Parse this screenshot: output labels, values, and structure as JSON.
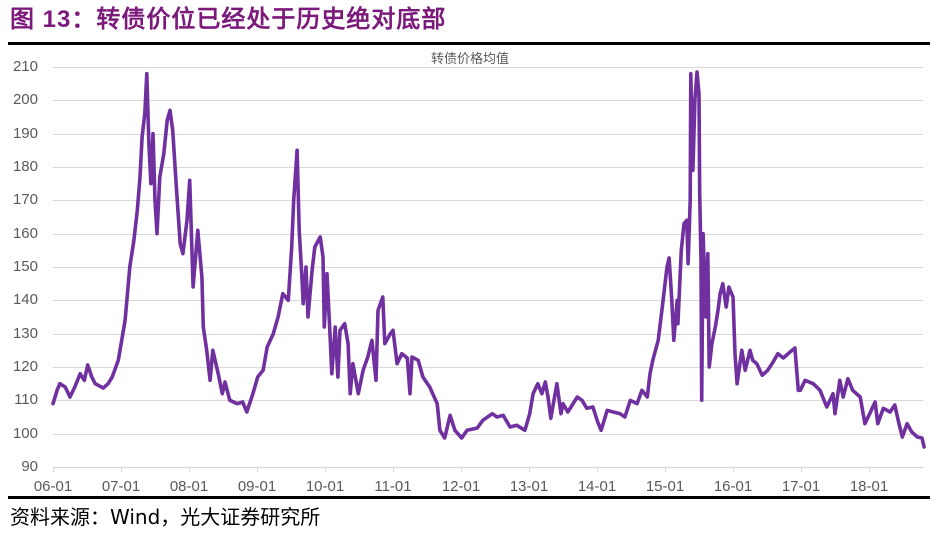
{
  "figure": {
    "title": "图 13：转债价位已经处于历史绝对底部",
    "source": "资料来源：Wind，光大证券研究所",
    "title_color": "#7b1a7b"
  },
  "chart_data": {
    "type": "line",
    "title": "",
    "xlabel": "",
    "ylabel": "",
    "legend": [
      "转债价格均值"
    ],
    "legend_position": "top-center",
    "grid": "horizontal",
    "ylim": [
      90,
      210
    ],
    "xlim": [
      2006.0,
      2018.85
    ],
    "yticks": [
      "210",
      "200",
      "190",
      "180",
      "170",
      "160",
      "150",
      "140",
      "130",
      "120",
      "110",
      "100",
      "90"
    ],
    "xticks": [
      "06-01",
      "07-01",
      "08-01",
      "09-01",
      "10-01",
      "11-01",
      "12-01",
      "13-01",
      "14-01",
      "15-01",
      "16-01",
      "17-01",
      "18-01"
    ],
    "xtick_years": [
      2006,
      2007,
      2008,
      2009,
      2010,
      2011,
      2012,
      2013,
      2014,
      2015,
      2016,
      2017,
      2018
    ],
    "series": [
      {
        "name": "转债价格均值",
        "color": "#7030a0",
        "x": [
          2006.0,
          2006.06,
          2006.1,
          2006.18,
          2006.25,
          2006.32,
          2006.4,
          2006.46,
          2006.51,
          2006.57,
          2006.62,
          2006.74,
          2006.81,
          2006.87,
          2006.96,
          2007.06,
          2007.13,
          2007.19,
          2007.24,
          2007.28,
          2007.31,
          2007.35,
          2007.38,
          2007.41,
          2007.44,
          2007.47,
          2007.5,
          2007.53,
          2007.57,
          2007.63,
          2007.68,
          2007.72,
          2007.76,
          2007.82,
          2007.87,
          2007.91,
          2007.97,
          2008.01,
          2008.06,
          2008.13,
          2008.19,
          2008.21,
          2008.26,
          2008.31,
          2008.35,
          2008.43,
          2008.49,
          2008.53,
          2008.6,
          2008.71,
          2008.79,
          2008.85,
          2008.94,
          2009.01,
          2009.09,
          2009.15,
          2009.24,
          2009.31,
          2009.38,
          2009.46,
          2009.51,
          2009.54,
          2009.59,
          2009.62,
          2009.66,
          2009.68,
          2009.72,
          2009.75,
          2009.81,
          2009.85,
          2009.93,
          2009.97,
          2009.99,
          2010.03,
          2010.07,
          2010.1,
          2010.15,
          2010.19,
          2010.22,
          2010.29,
          2010.34,
          2010.37,
          2010.41,
          2010.49,
          2010.56,
          2010.63,
          2010.69,
          2010.75,
          2010.78,
          2010.85,
          2010.88,
          2010.96,
          2011.0,
          2011.06,
          2011.13,
          2011.21,
          2011.25,
          2011.28,
          2011.37,
          2011.44,
          2011.54,
          2011.65,
          2011.69,
          2011.76,
          2011.84,
          2011.91,
          2012.01,
          2012.09,
          2012.24,
          2012.32,
          2012.46,
          2012.53,
          2012.62,
          2012.72,
          2012.82,
          2012.94,
          2013.01,
          2013.06,
          2013.13,
          2013.19,
          2013.24,
          2013.28,
          2013.32,
          2013.41,
          2013.47,
          2013.5,
          2013.57,
          2013.71,
          2013.78,
          2013.85,
          2013.94,
          2014.01,
          2014.06,
          2014.15,
          2014.24,
          2014.34,
          2014.41,
          2014.49,
          2014.59,
          2014.66,
          2014.74,
          2014.78,
          2014.82,
          2014.9,
          2014.96,
          2015.03,
          2015.06,
          2015.1,
          2015.13,
          2015.18,
          2015.19,
          2015.24,
          2015.28,
          2015.32,
          2015.34,
          2015.37,
          2015.38,
          2015.41,
          2015.44,
          2015.47,
          2015.5,
          2015.51,
          2015.53,
          2015.54,
          2015.56,
          2015.6,
          2015.63,
          2015.65,
          2015.69,
          2015.74,
          2015.78,
          2015.81,
          2015.85,
          2015.9,
          2015.94,
          2016.0,
          2016.03,
          2016.06,
          2016.13,
          2016.18,
          2016.25,
          2016.29,
          2016.35,
          2016.43,
          2016.51,
          2016.59,
          2016.66,
          2016.74,
          2016.84,
          2016.91,
          2016.96,
          2016.99,
          2017.06,
          2017.18,
          2017.28,
          2017.38,
          2017.47,
          2017.5,
          2017.57,
          2017.62,
          2017.69,
          2017.76,
          2017.87,
          2017.94,
          2018.01,
          2018.09,
          2018.13,
          2018.21,
          2018.31,
          2018.38,
          2018.43,
          2018.49,
          2018.56,
          2018.63,
          2018.71,
          2018.78,
          2018.81
        ],
        "values": [
          109,
          113,
          115,
          114,
          111,
          114,
          118,
          116,
          120.6,
          117,
          115,
          113.7,
          115,
          117,
          122,
          134,
          150,
          158,
          167,
          177,
          189,
          196,
          208,
          187,
          175,
          190,
          170,
          160,
          177,
          184,
          194,
          197,
          191,
          172,
          157,
          154,
          164,
          176,
          144,
          161,
          147,
          132,
          125,
          116,
          125,
          118,
          112,
          115.5,
          110,
          109,
          109.5,
          106.5,
          112,
          117,
          119,
          126,
          130,
          135,
          142,
          140,
          156,
          170,
          185,
          161,
          147,
          139,
          150,
          135,
          149,
          156,
          159,
          153,
          132,
          148,
          131,
          118,
          132,
          117,
          131,
          133,
          127,
          112,
          121,
          112,
          119,
          123,
          128,
          116,
          137,
          141,
          127,
          130,
          131,
          121,
          124,
          122.7,
          112,
          123,
          122,
          117,
          114,
          109,
          101,
          98.7,
          105.5,
          101,
          98.7,
          101,
          101.7,
          104,
          106,
          105,
          105.5,
          102,
          102.5,
          101,
          106,
          112,
          115,
          112,
          115.5,
          111,
          104.6,
          115,
          106,
          109,
          106.5,
          111,
          110,
          107.6,
          108,
          103.5,
          101,
          107,
          106.5,
          106,
          105,
          110,
          109,
          113,
          111,
          118,
          122,
          128,
          138,
          150,
          152.7,
          140,
          128,
          140,
          133,
          155,
          163,
          164,
          151,
          170,
          208,
          179,
          200,
          208.5,
          202,
          172,
          152,
          110,
          160,
          135,
          154,
          120,
          127,
          132,
          137,
          142,
          145,
          138,
          144,
          141,
          124,
          115,
          125,
          119,
          125,
          122,
          121,
          117.5,
          119,
          121.5,
          124,
          122.7,
          124.5,
          125.7,
          113,
          113,
          116,
          115,
          113,
          108,
          112,
          106,
          116,
          111,
          116.5,
          113,
          111,
          103,
          106,
          109.5,
          103,
          107.6,
          106.5,
          108.6,
          104,
          99,
          103,
          100.5,
          99,
          98.7,
          96
        ]
      }
    ],
    "gridline_color": "#d9d9d9",
    "axis_label_color": "#595959"
  }
}
